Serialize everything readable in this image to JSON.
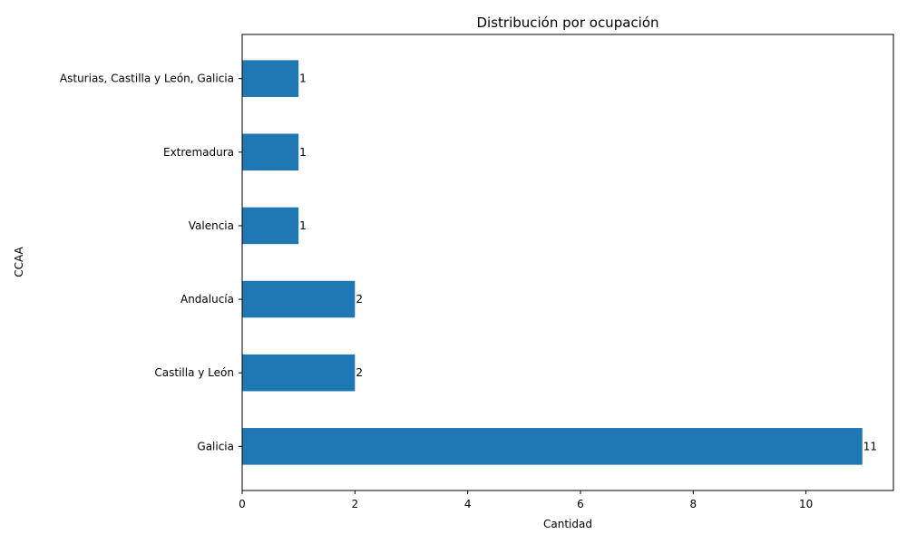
{
  "chart_data": {
    "type": "bar",
    "orientation": "horizontal",
    "title": "Distribución por ocupación",
    "xlabel": "Cantidad",
    "ylabel": "CCAA",
    "categories": [
      "Galicia",
      "Castilla y León",
      "Andalucía",
      "Valencia",
      "Extremadura",
      "Asturias, Castilla y León, Galicia"
    ],
    "values": [
      11,
      2,
      2,
      1,
      1,
      1
    ],
    "xlim": [
      0,
      11.55
    ],
    "xticks": [
      0,
      2,
      4,
      6,
      8,
      10
    ],
    "grid": false,
    "legend": "none",
    "bar_color": "#1f77b4",
    "show_value_labels": true
  }
}
